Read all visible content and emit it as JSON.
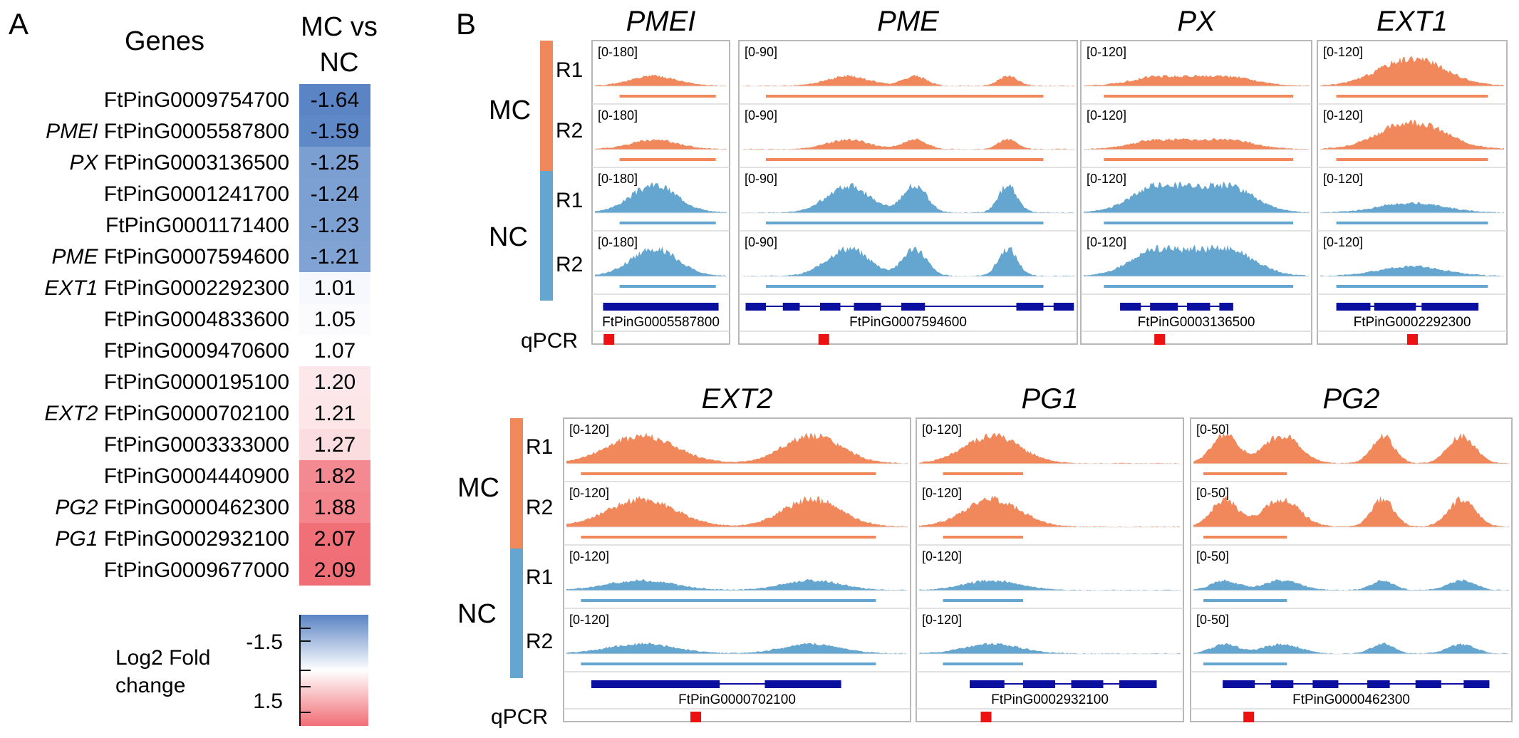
{
  "panel_a": {
    "letter": "A",
    "genes_header": "Genes",
    "col_header_line1": "MC vs",
    "col_header_line2": "NC",
    "rows": [
      {
        "label": "",
        "gene": "FtPinG0009754700",
        "value": "-1.64",
        "color": "#5a84c4"
      },
      {
        "label": "PMEI",
        "gene": "FtPinG0005587800",
        "value": "-1.59",
        "color": "#5f88c6"
      },
      {
        "label": "PX",
        "gene": "FtPinG0003136500",
        "value": "-1.25",
        "color": "#7c9fd2"
      },
      {
        "label": "",
        "gene": "FtPinG0001241700",
        "value": "-1.24",
        "color": "#7da0d3"
      },
      {
        "label": "",
        "gene": "FtPinG0001171400",
        "value": "-1.23",
        "color": "#7ea1d3"
      },
      {
        "label": "PME",
        "gene": "FtPinG0007594600",
        "value": "-1.21",
        "color": "#80a3d4"
      },
      {
        "label": "EXT1",
        "gene": "FtPinG0002292300",
        "value": "1.01",
        "color": "#f7f8fd"
      },
      {
        "label": "",
        "gene": "FtPinG0004833600",
        "value": "1.05",
        "color": "#fbfbfe"
      },
      {
        "label": "",
        "gene": "FtPinG0009470600",
        "value": "1.07",
        "color": "#ffffff"
      },
      {
        "label": "",
        "gene": "FtPinG0000195100",
        "value": "1.20",
        "color": "#fce8ea"
      },
      {
        "label": "EXT2",
        "gene": "FtPinG0000702100",
        "value": "1.21",
        "color": "#fce6e8"
      },
      {
        "label": "",
        "gene": "FtPinG0003333000",
        "value": "1.27",
        "color": "#fbdde0"
      },
      {
        "label": "",
        "gene": "FtPinG0004440900",
        "value": "1.82",
        "color": "#f48a91"
      },
      {
        "label": "PG2",
        "gene": "FtPinG0000462300",
        "value": "1.88",
        "color": "#f4858c"
      },
      {
        "label": "PG1",
        "gene": "FtPinG0002932100",
        "value": "2.07",
        "color": "#f17078"
      },
      {
        "label": "",
        "gene": "FtPinG0009677000",
        "value": "2.09",
        "color": "#f06e76"
      }
    ],
    "legend": {
      "title_line1": "Log2 Fold",
      "title_line2": "change",
      "tick_low": "-1.5",
      "tick_high": "1.5",
      "color_low": "#5a84c4",
      "color_mid": "#ffffff",
      "color_high": "#f06e76"
    }
  },
  "panel_b": {
    "letter": "B",
    "group_mc": "MC",
    "group_nc": "NC",
    "rep1": "R1",
    "rep2": "R2",
    "qpcr_label": "qPCR",
    "mc_color": "#f0885c",
    "nc_color": "#64a6cf",
    "gene_model_color": "#0a0fa0",
    "qpcr_marker_color": "#ee1111",
    "tracks": [
      {
        "name": "PMEI",
        "range": "[0-180]",
        "gene_id": "FtPinG0005587800",
        "mc_level": "low",
        "nc_level": "high"
      },
      {
        "name": "PME",
        "range": "[0-90]",
        "gene_id": "FtPinG0007594600",
        "mc_level": "low",
        "nc_level": "high"
      },
      {
        "name": "PX",
        "range": "[0-120]",
        "gene_id": "FtPinG0003136500",
        "mc_level": "low",
        "nc_level": "high"
      },
      {
        "name": "EXT1",
        "range": "[0-120]",
        "gene_id": "FtPinG0002292300",
        "mc_level": "high",
        "nc_level": "low"
      },
      {
        "name": "EXT2",
        "range": "[0-120]",
        "gene_id": "FtPinG0000702100",
        "mc_level": "high",
        "nc_level": "low"
      },
      {
        "name": "PG1",
        "range": "[0-120]",
        "gene_id": "FtPinG0002932100",
        "mc_level": "high",
        "nc_level": "low"
      },
      {
        "name": "PG2",
        "range": "[0-50]",
        "gene_id": "FtPinG0000462300",
        "mc_level": "high",
        "nc_level": "low"
      }
    ]
  }
}
